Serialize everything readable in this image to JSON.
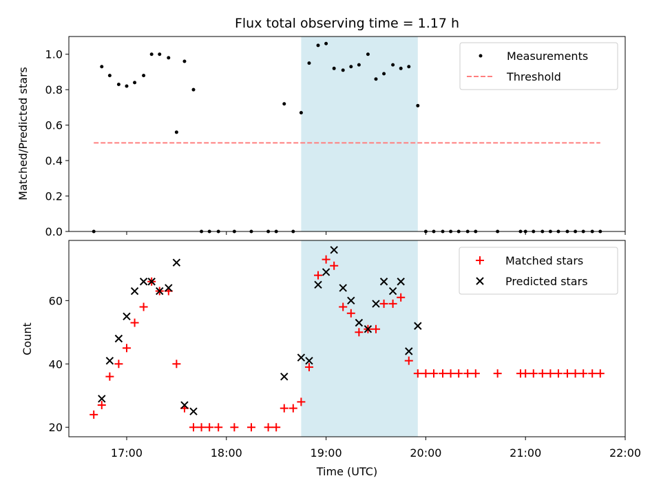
{
  "chart_data": [
    {
      "type": "scatter",
      "title": "Flux total observing time = 1.17 h",
      "xlabel": "",
      "ylabel": "Matched/Predicted stars",
      "ylim": [
        0,
        1.1
      ],
      "yticks": [
        0.0,
        0.2,
        0.4,
        0.6,
        0.8,
        1.0
      ],
      "ytick_labels": [
        "0.0",
        "0.2",
        "0.4",
        "0.6",
        "0.8",
        "1.0"
      ],
      "xlim_hours": [
        16.42,
        22.0
      ],
      "shaded_region_hours": [
        18.75,
        19.92
      ],
      "shaded_color": "#add8e6",
      "legend": {
        "placement": "top-right",
        "entries": [
          "Measurements",
          "Threshold"
        ]
      },
      "series": [
        {
          "name": "Measurements",
          "color": "#000000",
          "marker": "dot",
          "x": [
            16.67,
            16.75,
            16.83,
            16.92,
            17.0,
            17.08,
            17.17,
            17.25,
            17.33,
            17.42,
            17.5,
            17.58,
            17.67,
            17.75,
            17.83,
            17.92,
            18.08,
            18.25,
            18.42,
            18.5,
            18.58,
            18.67,
            18.75,
            18.83,
            18.92,
            19.0,
            19.08,
            19.17,
            19.25,
            19.33,
            19.42,
            19.5,
            19.58,
            19.67,
            19.75,
            19.83,
            19.92,
            20.0,
            20.08,
            20.17,
            20.25,
            20.33,
            20.42,
            20.5,
            20.72,
            20.95,
            21.0,
            21.08,
            21.17,
            21.25,
            21.33,
            21.42,
            21.5,
            21.58,
            21.67,
            21.75
          ],
          "y": [
            0.0,
            0.93,
            0.88,
            0.83,
            0.82,
            0.84,
            0.88,
            1.0,
            1.0,
            0.98,
            0.56,
            0.96,
            0.8,
            0.0,
            0.0,
            0.0,
            0.0,
            0.0,
            0.0,
            0.0,
            0.72,
            0.0,
            0.67,
            0.95,
            1.05,
            1.06,
            0.92,
            0.91,
            0.93,
            0.94,
            1.0,
            0.86,
            0.89,
            0.94,
            0.92,
            0.93,
            0.71,
            0.0,
            0.0,
            0.0,
            0.0,
            0.0,
            0.0,
            0.0,
            0.0,
            0.0,
            0.0,
            0.0,
            0.0,
            0.0,
            0.0,
            0.0,
            0.0,
            0.0,
            0.0,
            0.0
          ]
        },
        {
          "name": "Threshold",
          "color": "#ff7f7f",
          "style": "dashed",
          "x": [
            16.67,
            21.75
          ],
          "y": [
            0.5,
            0.5
          ]
        }
      ]
    },
    {
      "type": "scatter",
      "title": "",
      "xlabel": "Time (UTC)",
      "ylabel": "Count",
      "ylim": [
        17,
        79
      ],
      "yticks": [
        20,
        40,
        60
      ],
      "ytick_labels": [
        "20",
        "40",
        "60"
      ],
      "xlim_hours": [
        16.42,
        22.0
      ],
      "xticks_hours": [
        17,
        18,
        19,
        20,
        21,
        22
      ],
      "xtick_labels": [
        "17:00",
        "18:00",
        "19:00",
        "20:00",
        "21:00",
        "22:00"
      ],
      "shaded_region_hours": [
        18.75,
        19.92
      ],
      "shaded_color": "#add8e6",
      "legend": {
        "placement": "top-right",
        "entries": [
          "Matched stars",
          "Predicted stars"
        ]
      },
      "series": [
        {
          "name": "Matched stars",
          "color": "#ff0000",
          "marker": "plus",
          "x": [
            16.67,
            16.75,
            16.83,
            16.92,
            17.0,
            17.08,
            17.17,
            17.25,
            17.33,
            17.42,
            17.5,
            17.58,
            17.67,
            17.75,
            17.83,
            17.92,
            18.08,
            18.25,
            18.42,
            18.5,
            18.58,
            18.67,
            18.75,
            18.83,
            18.92,
            19.0,
            19.08,
            19.17,
            19.25,
            19.33,
            19.42,
            19.5,
            19.58,
            19.67,
            19.75,
            19.83,
            19.92,
            20.0,
            20.08,
            20.17,
            20.25,
            20.33,
            20.42,
            20.5,
            20.72,
            20.95,
            21.0,
            21.08,
            21.17,
            21.25,
            21.33,
            21.42,
            21.5,
            21.58,
            21.67,
            21.75
          ],
          "y": [
            24,
            27,
            36,
            40,
            45,
            53,
            58,
            66,
            63,
            63,
            40,
            26,
            20,
            20,
            20,
            20,
            20,
            20,
            20,
            20,
            26,
            26,
            28,
            39,
            68,
            73,
            71,
            58,
            56,
            50,
            51,
            51,
            59,
            59,
            61,
            41,
            37,
            37,
            37,
            37,
            37,
            37,
            37,
            37,
            37,
            37,
            37,
            37,
            37,
            37,
            37,
            37,
            37,
            37,
            37,
            37
          ]
        },
        {
          "name": "Predicted stars",
          "color": "#000000",
          "marker": "x",
          "x": [
            16.75,
            16.83,
            16.92,
            17.0,
            17.08,
            17.17,
            17.25,
            17.33,
            17.42,
            17.5,
            17.58,
            17.67,
            18.58,
            18.75,
            18.83,
            18.92,
            19.0,
            19.08,
            19.17,
            19.25,
            19.33,
            19.42,
            19.5,
            19.58,
            19.67,
            19.75,
            19.83,
            19.92
          ],
          "y": [
            29,
            41,
            48,
            55,
            63,
            66,
            66,
            63,
            64,
            72,
            27,
            25,
            36,
            42,
            41,
            65,
            69,
            76,
            64,
            60,
            53,
            51,
            59,
            66,
            63,
            66,
            44,
            52
          ]
        }
      ]
    }
  ]
}
